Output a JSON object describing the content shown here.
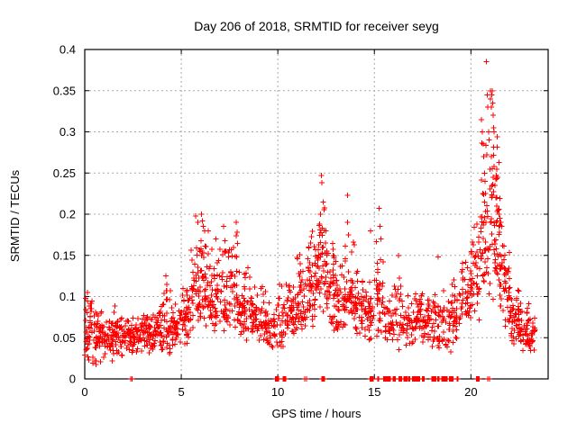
{
  "chart_data": {
    "type": "scatter",
    "title": "Day 206 of 2018, SRMTID for receiver seyg",
    "xlabel": "GPS time / hours",
    "ylabel": "SRMTID / TECUs",
    "xlim": [
      0,
      24
    ],
    "ylim": [
      0,
      0.4
    ],
    "grid": true,
    "legend": "none",
    "marker": "plus",
    "marker_color": "#ff0000",
    "grid_color": "#a8a8a8",
    "border_color": "#000000",
    "xticks": [
      {
        "value": 0,
        "label": "0"
      },
      {
        "value": 5,
        "label": "5"
      },
      {
        "value": 10,
        "label": "10"
      },
      {
        "value": 15,
        "label": "15"
      },
      {
        "value": 20,
        "label": "20"
      }
    ],
    "yticks": [
      {
        "value": 0,
        "label": "0"
      },
      {
        "value": 0.05,
        "label": "0.05"
      },
      {
        "value": 0.1,
        "label": "0.1"
      },
      {
        "value": 0.15,
        "label": "0.15"
      },
      {
        "value": 0.2,
        "label": "0.2"
      },
      {
        "value": 0.25,
        "label": "0.25"
      },
      {
        "value": 0.3,
        "label": "0.3"
      },
      {
        "value": 0.35,
        "label": "0.35"
      },
      {
        "value": 0.4,
        "label": "0.4"
      }
    ],
    "seed": 7,
    "bins_format": [
      "hour_start",
      "hour_end",
      "y_min",
      "y_max",
      "y_mode",
      "n_points"
    ],
    "density_bins": [
      [
        0.0,
        0.5,
        0.015,
        0.105,
        0.05,
        46
      ],
      [
        0.5,
        1.0,
        0.015,
        0.085,
        0.045,
        44
      ],
      [
        1.0,
        1.5,
        0.02,
        0.075,
        0.045,
        42
      ],
      [
        1.5,
        2.0,
        0.02,
        0.095,
        0.05,
        42
      ],
      [
        2.0,
        2.5,
        0.025,
        0.08,
        0.05,
        40
      ],
      [
        2.5,
        3.0,
        0.03,
        0.08,
        0.05,
        40
      ],
      [
        3.0,
        3.5,
        0.025,
        0.085,
        0.05,
        40
      ],
      [
        3.5,
        4.0,
        0.03,
        0.09,
        0.055,
        40
      ],
      [
        4.0,
        4.5,
        0.025,
        0.125,
        0.055,
        42
      ],
      [
        4.5,
        5.0,
        0.03,
        0.095,
        0.055,
        40
      ],
      [
        5.0,
        5.5,
        0.04,
        0.115,
        0.07,
        42
      ],
      [
        5.5,
        6.0,
        0.045,
        0.19,
        0.09,
        46
      ],
      [
        6.0,
        6.5,
        0.05,
        0.195,
        0.1,
        46
      ],
      [
        6.5,
        7.0,
        0.05,
        0.17,
        0.09,
        42
      ],
      [
        7.0,
        7.5,
        0.045,
        0.185,
        0.08,
        40
      ],
      [
        7.5,
        8.0,
        0.05,
        0.19,
        0.085,
        42
      ],
      [
        8.0,
        8.5,
        0.045,
        0.135,
        0.08,
        40
      ],
      [
        8.5,
        9.0,
        0.04,
        0.125,
        0.07,
        40
      ],
      [
        9.0,
        9.5,
        0.04,
        0.115,
        0.065,
        36
      ],
      [
        9.5,
        10.0,
        0.03,
        0.1,
        0.06,
        30
      ],
      [
        10.0,
        10.5,
        0.035,
        0.12,
        0.065,
        34
      ],
      [
        10.5,
        11.0,
        0.05,
        0.13,
        0.08,
        40
      ],
      [
        11.0,
        11.5,
        0.05,
        0.155,
        0.09,
        46
      ],
      [
        11.5,
        12.0,
        0.055,
        0.185,
        0.1,
        50
      ],
      [
        12.0,
        12.5,
        0.06,
        0.24,
        0.115,
        52
      ],
      [
        12.5,
        13.0,
        0.055,
        0.17,
        0.1,
        46
      ],
      [
        13.0,
        13.5,
        0.05,
        0.155,
        0.09,
        42
      ],
      [
        13.5,
        14.0,
        0.055,
        0.19,
        0.09,
        40
      ],
      [
        14.0,
        14.5,
        0.05,
        0.135,
        0.08,
        40
      ],
      [
        14.5,
        15.0,
        0.04,
        0.125,
        0.075,
        36
      ],
      [
        15.0,
        15.5,
        0.045,
        0.185,
        0.085,
        36
      ],
      [
        15.5,
        16.0,
        0.035,
        0.115,
        0.065,
        30
      ],
      [
        16.0,
        16.5,
        0.03,
        0.145,
        0.06,
        30
      ],
      [
        16.5,
        17.0,
        0.035,
        0.105,
        0.06,
        32
      ],
      [
        17.0,
        17.5,
        0.04,
        0.115,
        0.07,
        40
      ],
      [
        17.5,
        18.0,
        0.04,
        0.11,
        0.065,
        36
      ],
      [
        18.0,
        18.5,
        0.03,
        0.12,
        0.06,
        32
      ],
      [
        18.5,
        19.0,
        0.03,
        0.115,
        0.06,
        32
      ],
      [
        19.0,
        19.5,
        0.04,
        0.125,
        0.07,
        36
      ],
      [
        19.5,
        20.0,
        0.055,
        0.155,
        0.09,
        38
      ],
      [
        20.0,
        20.5,
        0.07,
        0.21,
        0.11,
        42
      ],
      [
        20.5,
        21.0,
        0.09,
        0.3,
        0.15,
        50
      ],
      [
        21.0,
        21.5,
        0.08,
        0.33,
        0.16,
        55
      ],
      [
        21.5,
        22.0,
        0.055,
        0.2,
        0.1,
        46
      ],
      [
        22.0,
        22.5,
        0.04,
        0.125,
        0.07,
        46
      ],
      [
        22.5,
        23.0,
        0.03,
        0.105,
        0.055,
        44
      ],
      [
        23.0,
        23.35,
        0.03,
        0.09,
        0.05,
        26
      ]
    ],
    "outlier_points": [
      [
        0.05,
        0.098
      ],
      [
        0.15,
        0.105
      ],
      [
        4.2,
        0.125
      ],
      [
        4.25,
        0.115
      ],
      [
        5.75,
        0.198
      ],
      [
        5.85,
        0.19
      ],
      [
        6.05,
        0.2
      ],
      [
        6.1,
        0.192
      ],
      [
        6.15,
        0.185
      ],
      [
        6.4,
        0.18
      ],
      [
        6.8,
        0.17
      ],
      [
        7.2,
        0.185
      ],
      [
        7.3,
        0.155
      ],
      [
        7.85,
        0.19
      ],
      [
        7.9,
        0.178
      ],
      [
        8.45,
        0.135
      ],
      [
        12.2,
        0.2
      ],
      [
        12.25,
        0.247
      ],
      [
        12.28,
        0.238
      ],
      [
        12.35,
        0.215
      ],
      [
        13.6,
        0.223
      ],
      [
        13.62,
        0.19
      ],
      [
        13.65,
        0.175
      ],
      [
        14.8,
        0.18
      ],
      [
        15.25,
        0.207
      ],
      [
        15.3,
        0.185
      ],
      [
        15.35,
        0.17
      ],
      [
        16.25,
        0.15
      ],
      [
        18.3,
        0.148
      ],
      [
        20.55,
        0.315
      ],
      [
        20.6,
        0.3
      ],
      [
        20.63,
        0.285
      ],
      [
        20.66,
        0.27
      ],
      [
        20.7,
        0.25
      ],
      [
        20.72,
        0.24
      ],
      [
        20.76,
        0.225
      ],
      [
        20.8,
        0.385
      ],
      [
        20.85,
        0.345
      ],
      [
        20.88,
        0.33
      ],
      [
        20.92,
        0.3
      ],
      [
        20.95,
        0.29
      ],
      [
        21.0,
        0.35
      ],
      [
        21.02,
        0.34
      ],
      [
        21.05,
        0.33
      ],
      [
        21.08,
        0.345
      ],
      [
        21.1,
        0.35
      ],
      [
        21.12,
        0.335
      ],
      [
        21.15,
        0.32
      ],
      [
        21.18,
        0.305
      ],
      [
        21.2,
        0.3
      ],
      [
        21.05,
        0.27
      ],
      [
        21.1,
        0.255
      ],
      [
        21.15,
        0.245
      ],
      [
        21.25,
        0.235
      ],
      [
        21.3,
        0.22
      ],
      [
        21.35,
        0.21
      ],
      [
        21.4,
        0.205
      ],
      [
        21.45,
        0.2
      ],
      [
        21.5,
        0.195
      ],
      [
        21.55,
        0.19
      ],
      [
        21.6,
        0.185
      ]
    ],
    "zero_runs_format": [
      "hour_start",
      "hour_end",
      "n_points"
    ],
    "zero_value_runs": [
      [
        2.38,
        2.44,
        2
      ],
      [
        9.88,
        10.05,
        7
      ],
      [
        10.28,
        10.42,
        6
      ],
      [
        11.4,
        11.48,
        2
      ],
      [
        12.28,
        12.42,
        6
      ],
      [
        14.78,
        14.95,
        8
      ],
      [
        15.18,
        15.22,
        2
      ],
      [
        15.48,
        15.82,
        10
      ],
      [
        15.98,
        16.08,
        4
      ],
      [
        16.28,
        16.42,
        6
      ],
      [
        16.52,
        16.72,
        8
      ],
      [
        16.78,
        16.84,
        3
      ],
      [
        16.98,
        17.22,
        9
      ],
      [
        17.28,
        17.34,
        3
      ],
      [
        17.48,
        17.58,
        4
      ],
      [
        17.98,
        18.18,
        8
      ],
      [
        18.28,
        18.34,
        3
      ],
      [
        18.48,
        18.78,
        11
      ],
      [
        18.88,
        19.08,
        7
      ],
      [
        19.28,
        19.34,
        3
      ],
      [
        20.28,
        20.42,
        6
      ],
      [
        20.88,
        20.96,
        2
      ]
    ]
  }
}
